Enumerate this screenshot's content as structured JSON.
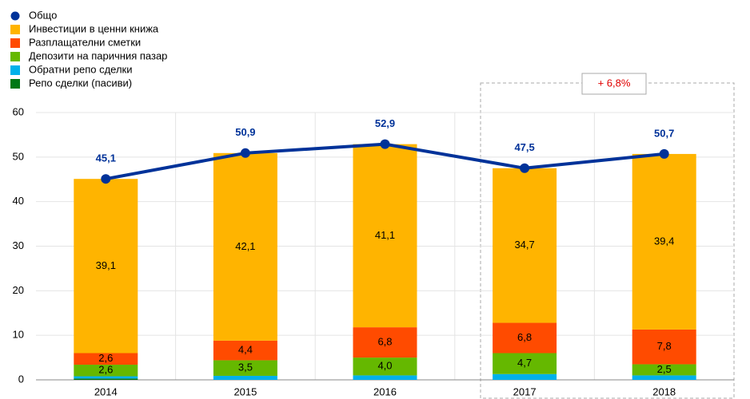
{
  "chart_data": {
    "type": "bar",
    "categories": [
      "2014",
      "2015",
      "2016",
      "2017",
      "2018"
    ],
    "series": [
      {
        "name": "Общо",
        "type": "line",
        "color": "#003299",
        "values": [
          45.1,
          50.9,
          52.9,
          47.5,
          50.7
        ],
        "value_labels": [
          "45,1",
          "50,9",
          "52,9",
          "47,5",
          "50,7"
        ]
      },
      {
        "name": "Инвестиции в ценни книжа",
        "color": "#ffb400",
        "values": [
          39.1,
          42.1,
          41.1,
          34.7,
          39.4
        ],
        "value_labels": [
          "39,1",
          "42,1",
          "41,1",
          "34,7",
          "39,4"
        ]
      },
      {
        "name": "Разплащателни сметки",
        "color": "#ff4b00",
        "values": [
          2.6,
          4.4,
          6.8,
          6.8,
          7.8
        ],
        "value_labels": [
          "2,6",
          "4,4",
          "6,8",
          "6,8",
          "7,8"
        ]
      },
      {
        "name": "Депозити на паричния пазар",
        "color": "#65b800",
        "values": [
          2.6,
          3.5,
          4.0,
          4.7,
          2.5
        ],
        "value_labels": [
          "2,6",
          "3,5",
          "4,0",
          "4,7",
          "2,5"
        ]
      },
      {
        "name": "Обратни репо сделки",
        "color": "#00b1ea",
        "values": [
          0.5,
          0.9,
          1.0,
          1.3,
          1.0
        ]
      },
      {
        "name": "Репо сделки (пасиви)",
        "color": "#007816",
        "values": [
          0.3,
          0,
          0,
          0,
          0
        ]
      }
    ],
    "annotation": "+ 6,8%",
    "ylim": [
      0,
      60
    ],
    "yticks": [
      0,
      10,
      20,
      30,
      40,
      50,
      60
    ],
    "grid": true,
    "legend": "top-left"
  }
}
